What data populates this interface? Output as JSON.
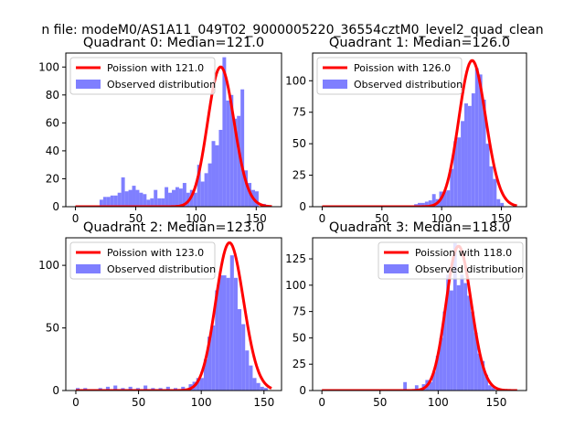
{
  "figure": {
    "suptitle": "n file: modeM0/AS1A11_049T02_9000005220_36554cztM0_level2_quad_clean"
  },
  "colors": {
    "poisson": "#ff0000",
    "observed": "#7f7fff",
    "axis": "#000000"
  },
  "chart_data": [
    {
      "type": "bar",
      "title": "Quadrant 0: Median=121.0",
      "xlim": [
        -8,
        171
      ],
      "ylim": [
        0,
        110
      ],
      "xticks": [
        0,
        50,
        100,
        150
      ],
      "yticks": [
        0,
        20,
        40,
        60,
        80,
        100
      ],
      "legend": [
        "Poission with 121.0",
        "Observed distribution"
      ],
      "legend_position": "upper-left",
      "median": 121,
      "peak": 100,
      "bin_width": 3,
      "bins": [
        [
          20,
          5
        ],
        [
          23,
          7
        ],
        [
          26,
          7
        ],
        [
          29,
          8
        ],
        [
          32,
          8
        ],
        [
          35,
          10
        ],
        [
          38,
          21
        ],
        [
          41,
          11
        ],
        [
          44,
          12
        ],
        [
          47,
          15
        ],
        [
          50,
          12
        ],
        [
          53,
          10
        ],
        [
          56,
          9
        ],
        [
          59,
          5
        ],
        [
          62,
          6
        ],
        [
          65,
          12
        ],
        [
          68,
          6
        ],
        [
          71,
          6
        ],
        [
          74,
          14
        ],
        [
          77,
          10
        ],
        [
          80,
          12
        ],
        [
          83,
          14
        ],
        [
          86,
          13
        ],
        [
          89,
          17
        ],
        [
          92,
          10
        ],
        [
          95,
          12
        ],
        [
          98,
          10
        ],
        [
          101,
          30
        ],
        [
          104,
          18
        ],
        [
          107,
          24
        ],
        [
          110,
          31
        ],
        [
          113,
          47
        ],
        [
          116,
          44
        ],
        [
          119,
          55
        ],
        [
          122,
          107
        ],
        [
          125,
          76
        ],
        [
          128,
          80
        ],
        [
          131,
          63
        ],
        [
          134,
          65
        ],
        [
          137,
          84
        ],
        [
          140,
          26
        ],
        [
          143,
          17
        ],
        [
          146,
          12
        ],
        [
          149,
          11
        ],
        [
          155,
          2
        ]
      ]
    },
    {
      "type": "bar",
      "title": "Quadrant 1: Median=126.0",
      "xlim": [
        -8,
        171
      ],
      "ylim": [
        0,
        122
      ],
      "xticks": [
        0,
        50,
        100,
        150
      ],
      "yticks": [
        0,
        25,
        50,
        75,
        100
      ],
      "legend": [
        "Poission with 126.0",
        "Observed distribution"
      ],
      "legend_position": "upper-left",
      "median": 126,
      "peak": 116,
      "bin_width": 3,
      "bins": [
        [
          77,
          2
        ],
        [
          80,
          3
        ],
        [
          83,
          3
        ],
        [
          86,
          4
        ],
        [
          89,
          5
        ],
        [
          92,
          10
        ],
        [
          95,
          6
        ],
        [
          98,
          12
        ],
        [
          101,
          12
        ],
        [
          104,
          13
        ],
        [
          107,
          30
        ],
        [
          110,
          52
        ],
        [
          113,
          55
        ],
        [
          116,
          68
        ],
        [
          119,
          82
        ],
        [
          122,
          80
        ],
        [
          125,
          90
        ],
        [
          128,
          110
        ],
        [
          131,
          105
        ],
        [
          134,
          85
        ],
        [
          137,
          50
        ],
        [
          140,
          32
        ],
        [
          143,
          22
        ],
        [
          146,
          6
        ],
        [
          149,
          3
        ]
      ]
    },
    {
      "type": "bar",
      "title": "Quadrant 2: Median=123.0",
      "xlim": [
        -8,
        164
      ],
      "ylim": [
        0,
        122
      ],
      "xticks": [
        0,
        50,
        100,
        150
      ],
      "yticks": [
        0,
        50,
        100
      ],
      "legend": [
        "Poission with 123.0",
        "Observed distribution"
      ],
      "legend_position": "upper-left",
      "median": 123,
      "peak": 118,
      "bin_width": 3,
      "bins": [
        [
          0,
          2
        ],
        [
          6,
          2
        ],
        [
          12,
          1
        ],
        [
          18,
          2
        ],
        [
          24,
          3
        ],
        [
          30,
          4
        ],
        [
          36,
          2
        ],
        [
          42,
          3
        ],
        [
          48,
          2
        ],
        [
          54,
          4
        ],
        [
          60,
          2
        ],
        [
          66,
          2
        ],
        [
          72,
          3
        ],
        [
          78,
          2
        ],
        [
          84,
          3
        ],
        [
          90,
          5
        ],
        [
          93,
          7
        ],
        [
          96,
          10
        ],
        [
          99,
          10
        ],
        [
          102,
          25
        ],
        [
          105,
          43
        ],
        [
          108,
          52
        ],
        [
          111,
          80
        ],
        [
          114,
          92
        ],
        [
          117,
          92
        ],
        [
          120,
          90
        ],
        [
          123,
          108
        ],
        [
          126,
          90
        ],
        [
          129,
          65
        ],
        [
          132,
          53
        ],
        [
          135,
          32
        ],
        [
          138,
          20
        ],
        [
          141,
          10
        ],
        [
          144,
          6
        ],
        [
          147,
          3
        ],
        [
          150,
          2
        ]
      ]
    },
    {
      "type": "bar",
      "title": "Quadrant 3: Median=118.0",
      "xlim": [
        -8,
        176
      ],
      "ylim": [
        0,
        145
      ],
      "xticks": [
        0,
        50,
        100,
        150
      ],
      "yticks": [
        0,
        25,
        50,
        75,
        100,
        125
      ],
      "legend": [
        "Poission with 118.0",
        "Observed distribution"
      ],
      "legend_position": "upper-right",
      "median": 118,
      "peak": 137,
      "bin_width": 3,
      "bins": [
        [
          70,
          8
        ],
        [
          80,
          5
        ],
        [
          86,
          6
        ],
        [
          89,
          10
        ],
        [
          92,
          8
        ],
        [
          95,
          18
        ],
        [
          98,
          33
        ],
        [
          101,
          50
        ],
        [
          104,
          75
        ],
        [
          107,
          110
        ],
        [
          110,
          95
        ],
        [
          113,
          140
        ],
        [
          116,
          100
        ],
        [
          119,
          110
        ],
        [
          122,
          102
        ],
        [
          125,
          90
        ],
        [
          128,
          75
        ],
        [
          131,
          55
        ],
        [
          134,
          35
        ],
        [
          137,
          28
        ],
        [
          140,
          15
        ],
        [
          143,
          5
        ],
        [
          146,
          3
        ]
      ]
    }
  ]
}
